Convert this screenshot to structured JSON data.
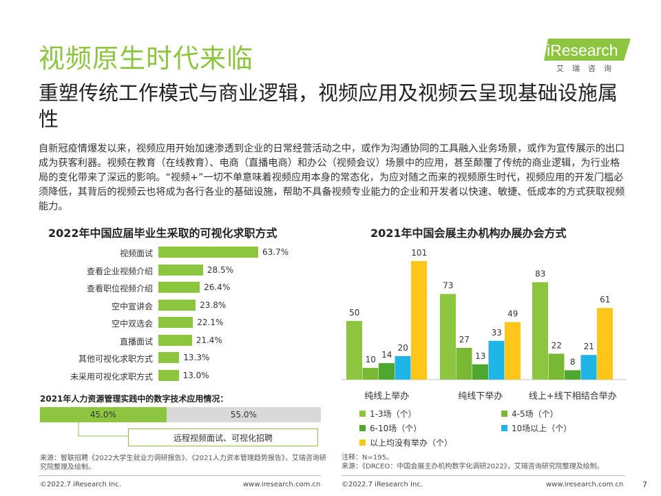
{
  "header": {
    "title": "视频原生时代来临",
    "subtitle": "重塑传统工作模式与商业逻辑，视频应用及视频云呈现基础设施属性",
    "logo_text": "iResearch",
    "logo_sub": "艾瑞咨询"
  },
  "body": {
    "paragraph": "自新冠疫情爆发以来，视频应用开始加速渗透到企业的日常经营活动之中，或作为沟通协同的工具融入业务场景，或作为宣传展示的出口成为获客利器。视频在教育（在线教育）、电商（直播电商）和办公（视频会议）场景中的应用，甚至颠覆了传统的商业逻辑，为行业格局的变化带来了深远的影响。“视频+”一切不单意味着视频应用本身的常态化，为应对随之而来的视频原生时代，视频应用的开发门槛必须降低，其背后的视频云也将成为各行各业的基础设施，帮助不具备视频专业能力的企业和开发者以快速、敏捷、低成本的方式获取视频能力。"
  },
  "colors": {
    "green": "#8cc63f",
    "dark_green": "#4ea72e",
    "mid_green": "#78b832",
    "blue": "#1eb5e6",
    "yellow": "#ffc61a",
    "gray": "#d9d9d9"
  },
  "chart_data": [
    {
      "type": "bar",
      "orientation": "horizontal",
      "title": "2022年中国应届毕业生采取的可视化求职方式",
      "categories": [
        "视频面试",
        "查看企业视频介绍",
        "查看职位视频介绍",
        "空中宣讲会",
        "空中双选会",
        "直播面试",
        "其他可视化求职方式",
        "未采用可视化求职方式"
      ],
      "values": [
        63.7,
        28.5,
        26.4,
        23.8,
        22.1,
        21.4,
        13.3,
        13.0
      ],
      "value_labels": [
        "63.7%",
        "28.5%",
        "26.4%",
        "23.8%",
        "22.1%",
        "21.4%",
        "13.3%",
        "13.0%"
      ],
      "unit": "%"
    },
    {
      "type": "bar",
      "orientation": "vertical",
      "title": "2021年中国会展主办机构办展办会方式",
      "categories": [
        "纯线上举办",
        "纯线下举办",
        "线上+线下相结合举办"
      ],
      "series": [
        {
          "name": "1-3场（个）",
          "values": [
            50,
            73,
            83
          ]
        },
        {
          "name": "4-5场（个）",
          "values": [
            10,
            27,
            22
          ]
        },
        {
          "name": "6-10场（个）",
          "values": [
            14,
            13,
            8
          ]
        },
        {
          "name": "10场以上（个）",
          "values": [
            20,
            33,
            21
          ]
        },
        {
          "name": "以上均没有举办（个）",
          "values": [
            101,
            49,
            61
          ]
        }
      ],
      "ylim": [
        0,
        101
      ],
      "legend": "bottom"
    }
  ],
  "digital_tech": {
    "title": "2021年人力资源管理实践中的数字技术应用情况：",
    "used_label": "45.0%",
    "used_value": 45.0,
    "unused_label": "55.0%",
    "callout": "远程视频面试、可视化招聘"
  },
  "sources": {
    "left": "来源：智联招聘《2022大学生就业力调研报告》、《2021人力资本管理趋势报告》，艾瑞咨询研究院整理及绘制。",
    "right_note": "注释：N=195。",
    "right": "来源：《DRCEO：中国会展主办机构数字化调研2022》，艾瑞咨询研究院整理及绘制。"
  },
  "footer": {
    "copyright_left": "©2022.7 iResearch Inc.",
    "url_left": "www.iresearch.com.cn",
    "copyright_right": "©2022.7 iResearch Inc.",
    "url_right": "www.iresearch.com.cn",
    "page_number": "7"
  }
}
